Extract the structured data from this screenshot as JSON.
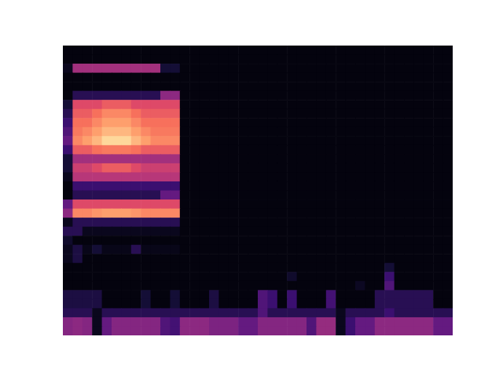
{
  "chart_data": {
    "type": "heatmap",
    "color": "magma",
    "tick_labels": false,
    "xlim": [
      0,
      40
    ],
    "ylim": [
      0,
      32
    ],
    "cells": [
      [
        0.02,
        0.02,
        0.02,
        0.02,
        0.02,
        0.02,
        0.02,
        0.02,
        0.02,
        0.02,
        0.02,
        0.02,
        0.02,
        0.02,
        0.02,
        0.02,
        0.02,
        0.02,
        0.02,
        0.02,
        0.02,
        0.02,
        0.02,
        0.02,
        0.02,
        0.02,
        0.02,
        0.02,
        0.02,
        0.02,
        0.02,
        0.02,
        0.02,
        0.02,
        0.02,
        0.02,
        0.02,
        0.02,
        0.02,
        0.02
      ],
      [
        0.02,
        0.02,
        0.02,
        0.02,
        0.02,
        0.02,
        0.02,
        0.02,
        0.02,
        0.02,
        0.02,
        0.02,
        0.02,
        0.02,
        0.02,
        0.02,
        0.02,
        0.02,
        0.02,
        0.02,
        0.02,
        0.02,
        0.02,
        0.02,
        0.02,
        0.02,
        0.02,
        0.02,
        0.02,
        0.02,
        0.02,
        0.02,
        0.02,
        0.02,
        0.02,
        0.02,
        0.02,
        0.02,
        0.02,
        0.02
      ],
      [
        0.05,
        0.45,
        0.45,
        0.45,
        0.45,
        0.45,
        0.45,
        0.45,
        0.45,
        0.45,
        0.1,
        0.1,
        0.02,
        0.02,
        0.02,
        0.02,
        0.02,
        0.02,
        0.02,
        0.02,
        0.02,
        0.02,
        0.02,
        0.02,
        0.02,
        0.02,
        0.02,
        0.02,
        0.02,
        0.02,
        0.02,
        0.02,
        0.02,
        0.02,
        0.02,
        0.02,
        0.02,
        0.02,
        0.02,
        0.02
      ],
      [
        0.02,
        0.02,
        0.02,
        0.02,
        0.02,
        0.02,
        0.02,
        0.02,
        0.02,
        0.02,
        0.02,
        0.02,
        0.02,
        0.02,
        0.02,
        0.02,
        0.02,
        0.02,
        0.02,
        0.02,
        0.02,
        0.02,
        0.02,
        0.02,
        0.02,
        0.02,
        0.02,
        0.02,
        0.02,
        0.02,
        0.02,
        0.02,
        0.02,
        0.02,
        0.02,
        0.02,
        0.02,
        0.02,
        0.02,
        0.02
      ],
      [
        0.02,
        0.02,
        0.02,
        0.02,
        0.02,
        0.02,
        0.02,
        0.02,
        0.02,
        0.02,
        0.02,
        0.02,
        0.02,
        0.02,
        0.02,
        0.02,
        0.02,
        0.02,
        0.02,
        0.02,
        0.02,
        0.02,
        0.02,
        0.02,
        0.02,
        0.02,
        0.02,
        0.02,
        0.02,
        0.02,
        0.02,
        0.02,
        0.02,
        0.02,
        0.02,
        0.02,
        0.02,
        0.02,
        0.02,
        0.02
      ],
      [
        0.02,
        0.15,
        0.15,
        0.15,
        0.15,
        0.15,
        0.15,
        0.15,
        0.15,
        0.15,
        0.4,
        0.4,
        0.02,
        0.02,
        0.02,
        0.02,
        0.02,
        0.02,
        0.02,
        0.02,
        0.02,
        0.02,
        0.02,
        0.02,
        0.02,
        0.02,
        0.02,
        0.02,
        0.02,
        0.02,
        0.02,
        0.02,
        0.02,
        0.02,
        0.02,
        0.02,
        0.02,
        0.02,
        0.02,
        0.02
      ],
      [
        0.1,
        0.6,
        0.6,
        0.6,
        0.65,
        0.65,
        0.65,
        0.6,
        0.6,
        0.6,
        0.6,
        0.6,
        0.02,
        0.02,
        0.02,
        0.02,
        0.02,
        0.02,
        0.02,
        0.02,
        0.02,
        0.02,
        0.02,
        0.02,
        0.02,
        0.02,
        0.02,
        0.02,
        0.02,
        0.02,
        0.02,
        0.02,
        0.02,
        0.02,
        0.02,
        0.02,
        0.02,
        0.02,
        0.02,
        0.02
      ],
      [
        0.15,
        0.65,
        0.65,
        0.7,
        0.75,
        0.75,
        0.75,
        0.7,
        0.65,
        0.65,
        0.65,
        0.65,
        0.02,
        0.02,
        0.02,
        0.02,
        0.02,
        0.02,
        0.02,
        0.02,
        0.02,
        0.02,
        0.02,
        0.02,
        0.02,
        0.02,
        0.02,
        0.02,
        0.02,
        0.02,
        0.02,
        0.02,
        0.02,
        0.02,
        0.02,
        0.02,
        0.02,
        0.02,
        0.02,
        0.02
      ],
      [
        0.2,
        0.7,
        0.7,
        0.75,
        0.8,
        0.8,
        0.8,
        0.75,
        0.7,
        0.7,
        0.7,
        0.7,
        0.02,
        0.02,
        0.02,
        0.02,
        0.02,
        0.02,
        0.02,
        0.02,
        0.02,
        0.02,
        0.02,
        0.02,
        0.02,
        0.02,
        0.02,
        0.02,
        0.02,
        0.02,
        0.02,
        0.02,
        0.02,
        0.02,
        0.02,
        0.02,
        0.02,
        0.02,
        0.02,
        0.02
      ],
      [
        0.25,
        0.72,
        0.75,
        0.8,
        0.85,
        0.85,
        0.85,
        0.8,
        0.75,
        0.72,
        0.72,
        0.72,
        0.02,
        0.02,
        0.02,
        0.02,
        0.02,
        0.02,
        0.02,
        0.02,
        0.02,
        0.02,
        0.02,
        0.02,
        0.02,
        0.02,
        0.02,
        0.02,
        0.02,
        0.02,
        0.02,
        0.02,
        0.02,
        0.02,
        0.02,
        0.02,
        0.02,
        0.02,
        0.02,
        0.02
      ],
      [
        0.3,
        0.75,
        0.8,
        0.85,
        0.92,
        0.92,
        0.92,
        0.85,
        0.8,
        0.75,
        0.75,
        0.75,
        0.02,
        0.02,
        0.02,
        0.02,
        0.02,
        0.02,
        0.02,
        0.02,
        0.02,
        0.02,
        0.02,
        0.02,
        0.02,
        0.02,
        0.02,
        0.02,
        0.02,
        0.02,
        0.02,
        0.02,
        0.02,
        0.02,
        0.02,
        0.02,
        0.02,
        0.02,
        0.02,
        0.02
      ],
      [
        0.2,
        0.65,
        0.65,
        0.7,
        0.72,
        0.72,
        0.72,
        0.7,
        0.65,
        0.65,
        0.65,
        0.65,
        0.02,
        0.02,
        0.02,
        0.02,
        0.02,
        0.02,
        0.02,
        0.02,
        0.02,
        0.02,
        0.02,
        0.02,
        0.02,
        0.02,
        0.02,
        0.02,
        0.02,
        0.02,
        0.02,
        0.02,
        0.02,
        0.02,
        0.02,
        0.02,
        0.02,
        0.02,
        0.02,
        0.02
      ],
      [
        0.1,
        0.45,
        0.45,
        0.45,
        0.45,
        0.45,
        0.45,
        0.45,
        0.45,
        0.45,
        0.45,
        0.45,
        0.02,
        0.02,
        0.02,
        0.02,
        0.02,
        0.02,
        0.02,
        0.02,
        0.02,
        0.02,
        0.02,
        0.02,
        0.02,
        0.02,
        0.02,
        0.02,
        0.02,
        0.02,
        0.02,
        0.02,
        0.02,
        0.02,
        0.02,
        0.02,
        0.02,
        0.02,
        0.02,
        0.02
      ],
      [
        0.1,
        0.55,
        0.55,
        0.6,
        0.65,
        0.65,
        0.65,
        0.6,
        0.55,
        0.55,
        0.55,
        0.55,
        0.02,
        0.02,
        0.02,
        0.02,
        0.02,
        0.02,
        0.02,
        0.02,
        0.02,
        0.02,
        0.02,
        0.02,
        0.02,
        0.02,
        0.02,
        0.02,
        0.02,
        0.02,
        0.02,
        0.02,
        0.02,
        0.02,
        0.02,
        0.02,
        0.02,
        0.02,
        0.02,
        0.02
      ],
      [
        0.05,
        0.5,
        0.5,
        0.5,
        0.5,
        0.5,
        0.5,
        0.5,
        0.5,
        0.5,
        0.5,
        0.5,
        0.02,
        0.02,
        0.02,
        0.02,
        0.02,
        0.02,
        0.02,
        0.02,
        0.02,
        0.02,
        0.02,
        0.02,
        0.02,
        0.02,
        0.02,
        0.02,
        0.02,
        0.02,
        0.02,
        0.02,
        0.02,
        0.02,
        0.02,
        0.02,
        0.02,
        0.02,
        0.02,
        0.02
      ],
      [
        0.02,
        0.2,
        0.2,
        0.2,
        0.2,
        0.2,
        0.2,
        0.2,
        0.2,
        0.2,
        0.2,
        0.2,
        0.02,
        0.02,
        0.02,
        0.02,
        0.02,
        0.02,
        0.02,
        0.02,
        0.02,
        0.02,
        0.02,
        0.02,
        0.02,
        0.02,
        0.02,
        0.02,
        0.02,
        0.02,
        0.02,
        0.02,
        0.02,
        0.02,
        0.02,
        0.02,
        0.02,
        0.02,
        0.02,
        0.02
      ],
      [
        0.02,
        0.15,
        0.15,
        0.15,
        0.15,
        0.15,
        0.15,
        0.15,
        0.15,
        0.15,
        0.3,
        0.3,
        0.02,
        0.02,
        0.02,
        0.02,
        0.02,
        0.02,
        0.02,
        0.02,
        0.02,
        0.02,
        0.02,
        0.02,
        0.02,
        0.02,
        0.02,
        0.02,
        0.02,
        0.02,
        0.02,
        0.02,
        0.02,
        0.02,
        0.02,
        0.02,
        0.02,
        0.02,
        0.02,
        0.02
      ],
      [
        0.3,
        0.6,
        0.6,
        0.6,
        0.6,
        0.6,
        0.6,
        0.6,
        0.6,
        0.6,
        0.6,
        0.6,
        0.02,
        0.02,
        0.02,
        0.02,
        0.02,
        0.02,
        0.02,
        0.02,
        0.02,
        0.02,
        0.02,
        0.02,
        0.02,
        0.02,
        0.02,
        0.02,
        0.02,
        0.02,
        0.02,
        0.02,
        0.02,
        0.02,
        0.02,
        0.02,
        0.02,
        0.02,
        0.02,
        0.02
      ],
      [
        0.4,
        0.75,
        0.75,
        0.78,
        0.8,
        0.8,
        0.8,
        0.78,
        0.75,
        0.75,
        0.75,
        0.75,
        0.02,
        0.02,
        0.02,
        0.02,
        0.02,
        0.02,
        0.02,
        0.02,
        0.02,
        0.02,
        0.02,
        0.02,
        0.02,
        0.02,
        0.02,
        0.02,
        0.02,
        0.02,
        0.02,
        0.02,
        0.02,
        0.02,
        0.02,
        0.02,
        0.02,
        0.02,
        0.02,
        0.02
      ],
      [
        0.05,
        0.15,
        0.15,
        0.15,
        0.15,
        0.15,
        0.15,
        0.15,
        0.15,
        0.15,
        0.15,
        0.15,
        0.02,
        0.02,
        0.02,
        0.02,
        0.02,
        0.02,
        0.02,
        0.02,
        0.02,
        0.02,
        0.02,
        0.02,
        0.02,
        0.02,
        0.02,
        0.02,
        0.02,
        0.02,
        0.02,
        0.02,
        0.02,
        0.02,
        0.02,
        0.02,
        0.02,
        0.02,
        0.02,
        0.02
      ],
      [
        0.15,
        0.15,
        0.05,
        0.05,
        0.05,
        0.05,
        0.05,
        0.05,
        0.05,
        0.05,
        0.05,
        0.05,
        0.02,
        0.02,
        0.02,
        0.02,
        0.02,
        0.02,
        0.02,
        0.02,
        0.02,
        0.02,
        0.02,
        0.02,
        0.02,
        0.02,
        0.02,
        0.02,
        0.02,
        0.02,
        0.02,
        0.02,
        0.02,
        0.02,
        0.02,
        0.02,
        0.02,
        0.02,
        0.02,
        0.02
      ],
      [
        0.08,
        0.02,
        0.02,
        0.02,
        0.02,
        0.02,
        0.02,
        0.02,
        0.02,
        0.02,
        0.02,
        0.02,
        0.02,
        0.02,
        0.02,
        0.02,
        0.02,
        0.02,
        0.02,
        0.02,
        0.02,
        0.02,
        0.02,
        0.02,
        0.02,
        0.02,
        0.02,
        0.02,
        0.02,
        0.02,
        0.02,
        0.02,
        0.02,
        0.02,
        0.02,
        0.02,
        0.02,
        0.02,
        0.02,
        0.02
      ],
      [
        0.05,
        0.12,
        0.04,
        0.1,
        0.04,
        0.04,
        0.04,
        0.15,
        0.04,
        0.04,
        0.04,
        0.04,
        0.02,
        0.02,
        0.02,
        0.02,
        0.02,
        0.02,
        0.02,
        0.02,
        0.02,
        0.02,
        0.02,
        0.02,
        0.02,
        0.02,
        0.02,
        0.02,
        0.02,
        0.02,
        0.02,
        0.02,
        0.02,
        0.02,
        0.02,
        0.02,
        0.02,
        0.02,
        0.02,
        0.02
      ],
      [
        0.05,
        0.12,
        0.02,
        0.02,
        0.02,
        0.02,
        0.02,
        0.02,
        0.02,
        0.02,
        0.02,
        0.02,
        0.02,
        0.02,
        0.02,
        0.02,
        0.02,
        0.02,
        0.02,
        0.02,
        0.02,
        0.02,
        0.02,
        0.02,
        0.02,
        0.02,
        0.02,
        0.02,
        0.02,
        0.02,
        0.02,
        0.02,
        0.02,
        0.02,
        0.02,
        0.02,
        0.02,
        0.02,
        0.02,
        0.02
      ],
      [
        0.02,
        0.02,
        0.02,
        0.02,
        0.02,
        0.02,
        0.02,
        0.02,
        0.02,
        0.02,
        0.02,
        0.02,
        0.02,
        0.02,
        0.02,
        0.02,
        0.02,
        0.02,
        0.02,
        0.02,
        0.02,
        0.02,
        0.02,
        0.02,
        0.02,
        0.02,
        0.02,
        0.02,
        0.02,
        0.02,
        0.02,
        0.02,
        0.02,
        0.1,
        0.02,
        0.02,
        0.02,
        0.02,
        0.02,
        0.02
      ],
      [
        0.02,
        0.02,
        0.02,
        0.02,
        0.02,
        0.02,
        0.02,
        0.02,
        0.02,
        0.02,
        0.02,
        0.02,
        0.02,
        0.02,
        0.02,
        0.02,
        0.02,
        0.02,
        0.02,
        0.02,
        0.02,
        0.02,
        0.02,
        0.08,
        0.02,
        0.02,
        0.02,
        0.02,
        0.02,
        0.02,
        0.02,
        0.02,
        0.02,
        0.2,
        0.02,
        0.02,
        0.02,
        0.02,
        0.02,
        0.02
      ],
      [
        0.02,
        0.02,
        0.02,
        0.02,
        0.02,
        0.02,
        0.02,
        0.02,
        0.02,
        0.02,
        0.02,
        0.02,
        0.02,
        0.02,
        0.02,
        0.02,
        0.02,
        0.02,
        0.02,
        0.02,
        0.02,
        0.02,
        0.02,
        0.02,
        0.02,
        0.02,
        0.02,
        0.02,
        0.02,
        0.02,
        0.06,
        0.02,
        0.02,
        0.25,
        0.02,
        0.02,
        0.02,
        0.02,
        0.02,
        0.02
      ],
      [
        0.12,
        0.12,
        0.12,
        0.12,
        0.02,
        0.02,
        0.02,
        0.02,
        0.1,
        0.02,
        0.02,
        0.1,
        0.02,
        0.02,
        0.02,
        0.12,
        0.02,
        0.02,
        0.02,
        0.02,
        0.25,
        0.2,
        0.02,
        0.2,
        0.02,
        0.02,
        0.02,
        0.22,
        0.02,
        0.02,
        0.02,
        0.02,
        0.15,
        0.15,
        0.15,
        0.15,
        0.15,
        0.15,
        0.02,
        0.02
      ],
      [
        0.12,
        0.12,
        0.12,
        0.12,
        0.02,
        0.02,
        0.02,
        0.02,
        0.1,
        0.02,
        0.02,
        0.1,
        0.02,
        0.02,
        0.02,
        0.12,
        0.02,
        0.02,
        0.02,
        0.02,
        0.25,
        0.2,
        0.02,
        0.2,
        0.02,
        0.02,
        0.02,
        0.22,
        0.02,
        0.02,
        0.02,
        0.02,
        0.15,
        0.15,
        0.15,
        0.15,
        0.15,
        0.15,
        0.02,
        0.02
      ],
      [
        0.15,
        0.15,
        0.15,
        0.05,
        0.15,
        0.15,
        0.15,
        0.15,
        0.15,
        0.15,
        0.15,
        0.15,
        0.15,
        0.15,
        0.15,
        0.15,
        0.15,
        0.15,
        0.15,
        0.15,
        0.25,
        0.15,
        0.15,
        0.15,
        0.15,
        0.15,
        0.15,
        0.15,
        0.05,
        0.15,
        0.15,
        0.15,
        0.15,
        0.2,
        0.15,
        0.15,
        0.15,
        0.15,
        0.15,
        0.15
      ],
      [
        0.38,
        0.4,
        0.38,
        0.05,
        0.3,
        0.38,
        0.38,
        0.38,
        0.38,
        0.38,
        0.25,
        0.22,
        0.4,
        0.4,
        0.4,
        0.36,
        0.36,
        0.36,
        0.3,
        0.3,
        0.38,
        0.38,
        0.38,
        0.38,
        0.38,
        0.25,
        0.42,
        0.42,
        0.05,
        0.2,
        0.3,
        0.3,
        0.4,
        0.4,
        0.4,
        0.4,
        0.4,
        0.4,
        0.3,
        0.3
      ],
      [
        0.38,
        0.4,
        0.38,
        0.05,
        0.3,
        0.38,
        0.38,
        0.38,
        0.38,
        0.38,
        0.25,
        0.22,
        0.4,
        0.4,
        0.4,
        0.36,
        0.36,
        0.36,
        0.3,
        0.3,
        0.38,
        0.38,
        0.38,
        0.38,
        0.38,
        0.25,
        0.42,
        0.42,
        0.05,
        0.2,
        0.3,
        0.3,
        0.4,
        0.4,
        0.4,
        0.4,
        0.4,
        0.4,
        0.3,
        0.3
      ]
    ]
  }
}
